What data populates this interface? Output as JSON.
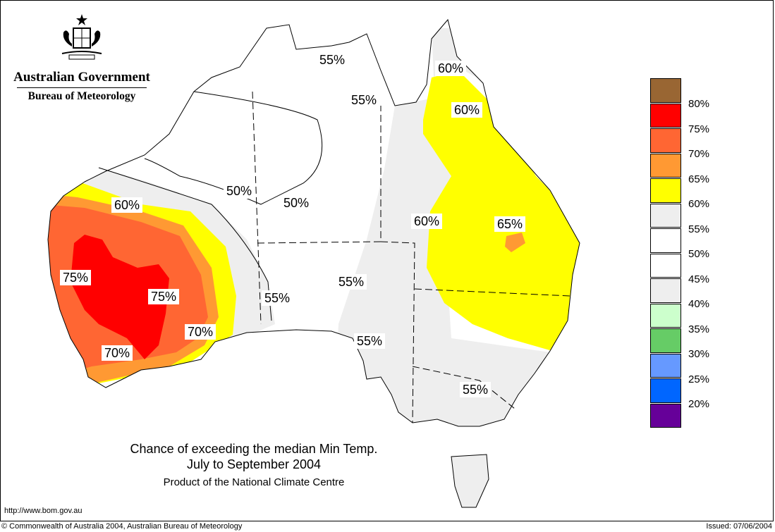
{
  "agency": {
    "government": "Australian Government",
    "bureau": "Bureau of Meteorology",
    "crest_icon": "coat-of-arms-icon"
  },
  "title": {
    "line1": "Chance of exceeding the median Min Temp.",
    "line2": "July to September 2004",
    "product": "Product of the National Climate Centre"
  },
  "url": "http://www.bom.gov.au",
  "copyright": "© Commonwealth of Australia 2004, Australian Bureau of Meteorology",
  "issued": "Issued: 07/06/2004",
  "legend": [
    {
      "label": "80%",
      "color": "#996633"
    },
    {
      "label": "75%",
      "color": "#ff0000"
    },
    {
      "label": "70%",
      "color": "#ff6633"
    },
    {
      "label": "65%",
      "color": "#ff9933"
    },
    {
      "label": "60%",
      "color": "#ffff00"
    },
    {
      "label": "55%",
      "color": "#eeeeee"
    },
    {
      "label": "50%",
      "color": "#ffffff"
    },
    {
      "label": "45%",
      "color": "#ffffff"
    },
    {
      "label": "40%",
      "color": "#eeeeee"
    },
    {
      "label": "35%",
      "color": "#ccffcc"
    },
    {
      "label": "30%",
      "color": "#66cc66"
    },
    {
      "label": "25%",
      "color": "#6699ff"
    },
    {
      "label": "20%",
      "color": "#0066ff"
    },
    {
      "label": "",
      "color": "#660099"
    }
  ],
  "map_labels": [
    "55%",
    "55%",
    "60%",
    "60%",
    "50%",
    "50%",
    "60%",
    "60%",
    "65%",
    "75%",
    "75%",
    "55%",
    "55%",
    "70%",
    "55%",
    "70%",
    "55%"
  ]
}
